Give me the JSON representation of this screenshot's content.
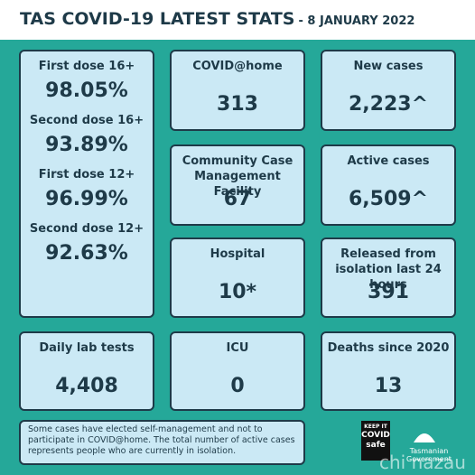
{
  "header": {
    "title": "TAS COVID-19 LATEST STATS",
    "date": "- 8 JANUARY 2022"
  },
  "vaccination": [
    {
      "label": "First dose 16+",
      "value": "98.05%"
    },
    {
      "label": "Second dose 16+",
      "value": "93.89%"
    },
    {
      "label": "First dose 12+",
      "value": "96.99%"
    },
    {
      "label": "Second dose 12+",
      "value": "92.63%"
    }
  ],
  "cards": [
    {
      "label": "COVID@home",
      "value": "313"
    },
    {
      "label": "New cases",
      "value": "2,223^"
    },
    {
      "label": "Community Case Management Facility",
      "value": "67"
    },
    {
      "label": "Active cases",
      "value": "6,509^"
    },
    {
      "label": "Hospital",
      "value": "10*"
    },
    {
      "label": "Released from isolation last 24 hours",
      "value": "391"
    },
    {
      "label": "Daily lab tests",
      "value": "4,408"
    },
    {
      "label": "ICU",
      "value": "0"
    },
    {
      "label": "Deaths since 2020",
      "value": "13"
    }
  ],
  "note": "Some cases have elected self-management and not to participate in COVID@home. The total number of active cases represents people who are currently in isolation.",
  "logos": {
    "covid_safe": [
      "KEEP IT",
      "COVID",
      "safe"
    ],
    "government": "Tasmanian Government"
  },
  "watermark": "chi nazau"
}
